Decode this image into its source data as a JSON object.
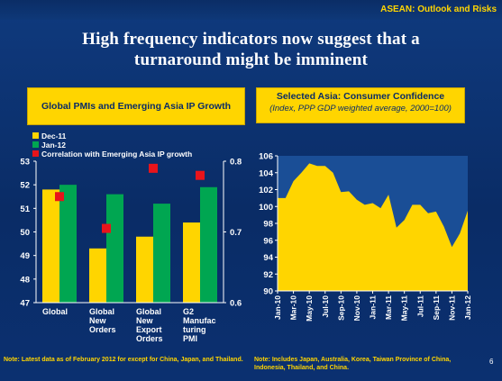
{
  "header": {
    "label": "ASEAN: Outlook and Risks"
  },
  "title": {
    "line1": "High frequency indicators now suggest that a",
    "line2": "turnaround might be imminent"
  },
  "left_panel": {
    "title": "Global PMIs and Emerging Asia IP Growth"
  },
  "right_panel": {
    "title": "Selected Asia: Consumer Confidence",
    "subtitle": "(Index, PPP GDP weighted average, 2000=100)"
  },
  "footnotes": {
    "left": "Note: Latest data as of February 2012 for except for China, Japan, and Thailand.",
    "right": "Note: Includes Japan, Australia, Korea, Taiwan Province of China, Indonesia, Thailand, and China."
  },
  "page_number": "6",
  "colors": {
    "bar1": "#ffd500",
    "bar2": "#00a651",
    "marker": "#e8141b",
    "area": "#ffd500",
    "title_box": "#ffd500"
  },
  "chart_data": [
    {
      "type": "bar",
      "categories": [
        "Global",
        "Global New Orders",
        "Global New Export Orders",
        "G2 Manufacturing PMI"
      ],
      "category_labels": [
        [
          "Global"
        ],
        [
          "Global",
          "New",
          "Orders"
        ],
        [
          "Global",
          "New",
          "Export",
          "Orders"
        ],
        [
          "G2",
          "Manufac",
          "turing",
          "PMI"
        ]
      ],
      "series": [
        {
          "name": "Dec-11",
          "values": [
            51.8,
            49.3,
            49.8,
            50.4
          ],
          "axis": "left"
        },
        {
          "name": "Jan-12",
          "values": [
            52.0,
            51.6,
            51.2,
            51.9
          ],
          "axis": "left"
        },
        {
          "name": "Correlation with Emerging Asia IP growth",
          "values": [
            0.75,
            0.705,
            0.79,
            0.78
          ],
          "axis": "right",
          "marker": "square"
        }
      ],
      "ylim": [
        47,
        53
      ],
      "yticks": [
        "47",
        "48",
        "49",
        "50",
        "51",
        "52",
        "53"
      ],
      "y2lim": [
        0.6,
        0.8
      ],
      "y2ticks": [
        "0.6",
        "0.7",
        "0.8"
      ],
      "legend": "top-left",
      "grid": false
    },
    {
      "type": "area",
      "x": [
        "Jan-10",
        "Feb-10",
        "Mar-10",
        "Apr-10",
        "May-10",
        "Jun-10",
        "Jul-10",
        "Aug-10",
        "Sep-10",
        "Oct-10",
        "Nov-10",
        "Dec-10",
        "Jan-11",
        "Feb-11",
        "Mar-11",
        "Apr-11",
        "May-11",
        "Jun-11",
        "Jul-11",
        "Aug-11",
        "Sep-11",
        "Oct-11",
        "Nov-11",
        "Dec-11",
        "Jan-12"
      ],
      "xtick_labels": [
        "Jan-10",
        "Mar-10",
        "May-10",
        "Jul-10",
        "Sep-10",
        "Nov-10",
        "Jan-11",
        "Mar-11",
        "May-11",
        "Jul-11",
        "Sep-11",
        "Nov-11",
        "Jan-12"
      ],
      "values": [
        101.0,
        101.0,
        103.0,
        104.0,
        105.1,
        104.8,
        104.8,
        104.0,
        101.7,
        101.8,
        100.8,
        100.2,
        100.4,
        99.8,
        101.4,
        97.5,
        98.4,
        100.2,
        100.2,
        99.2,
        99.4,
        97.6,
        95.2,
        96.8,
        99.5
      ],
      "ylim": [
        90,
        106
      ],
      "yticks": [
        "90",
        "92",
        "94",
        "96",
        "98",
        "100",
        "102",
        "104",
        "106"
      ],
      "grid": false
    }
  ]
}
